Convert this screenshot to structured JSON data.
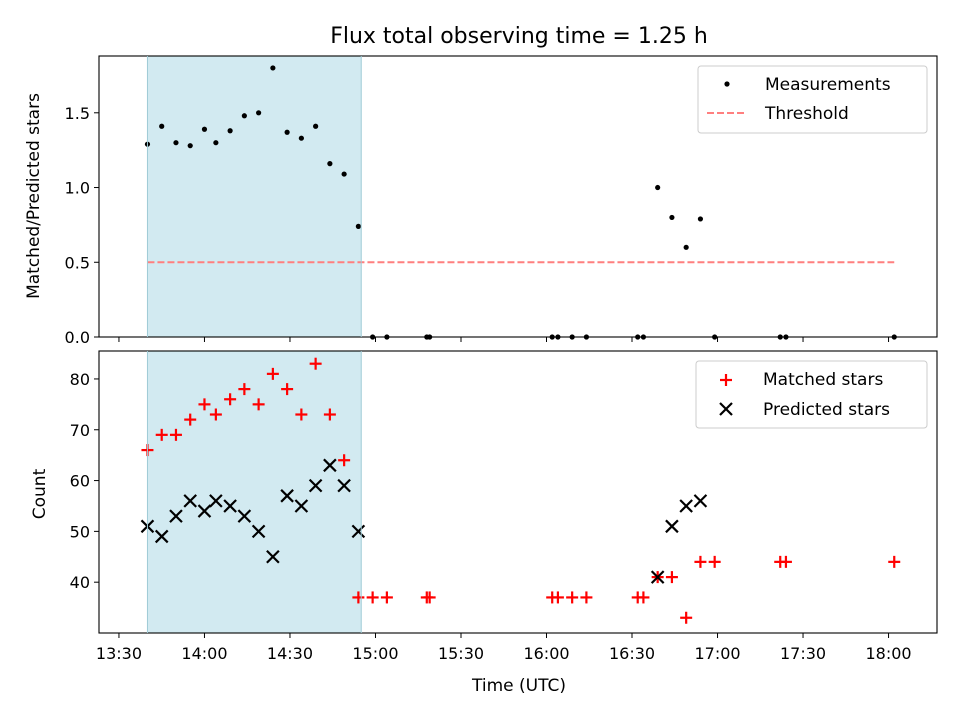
{
  "chart_data": [
    {
      "type": "scatter",
      "title": "Flux total observing time = 1.25 h",
      "xlabel": "",
      "ylabel": "Matched/Predicted stars",
      "ylim": [
        0,
        1.88
      ],
      "yticks": [
        "0.0",
        "0.5",
        "1.0",
        "1.5"
      ],
      "ytick_values": [
        0,
        0.5,
        1.0,
        1.5
      ],
      "xlim": [
        "13:23",
        "18:17"
      ],
      "grid": false,
      "legend": "upper right",
      "shaded_span": {
        "x0": "13:40",
        "x1": "14:55",
        "color": "#add8e6"
      },
      "series": [
        {
          "name": "Measurements",
          "marker": "dot",
          "color": "#000000",
          "x": [
            "13:40",
            "13:45",
            "13:50",
            "13:55",
            "14:00",
            "14:04",
            "14:09",
            "14:14",
            "14:19",
            "14:24",
            "14:29",
            "14:34",
            "14:39",
            "14:44",
            "14:49",
            "14:54",
            "14:59",
            "15:04",
            "15:18",
            "15:19",
            "16:02",
            "16:04",
            "16:09",
            "16:14",
            "16:32",
            "16:34",
            "16:39",
            "16:44",
            "16:49",
            "16:54",
            "16:59",
            "17:22",
            "17:24",
            "18:02"
          ],
          "y": [
            1.29,
            1.41,
            1.3,
            1.28,
            1.39,
            1.3,
            1.38,
            1.48,
            1.5,
            1.8,
            1.37,
            1.33,
            1.41,
            1.16,
            1.09,
            0.74,
            0.0,
            0.0,
            0.0,
            0.0,
            0.0,
            0.0,
            0.0,
            0.0,
            0.0,
            0.0,
            1.0,
            0.8,
            0.6,
            0.79,
            0.0,
            0.0,
            0.0,
            0.0
          ]
        },
        {
          "name": "Threshold",
          "style": "dashed",
          "color": "#ff7f7f",
          "x": [
            "13:40",
            "18:02"
          ],
          "y": [
            0.5,
            0.5
          ]
        }
      ]
    },
    {
      "type": "scatter",
      "title": "",
      "xlabel": "Time (UTC)",
      "ylabel": "Count",
      "ylim": [
        30,
        85.5
      ],
      "yticks": [
        "40",
        "50",
        "60",
        "70",
        "80"
      ],
      "ytick_values": [
        40,
        50,
        60,
        70,
        80
      ],
      "xlim": [
        "13:23",
        "18:17"
      ],
      "xticks": [
        "13:30",
        "14:00",
        "14:30",
        "15:00",
        "15:30",
        "16:00",
        "16:30",
        "17:00",
        "17:30",
        "18:00"
      ],
      "grid": false,
      "legend": "upper right",
      "shaded_span": {
        "x0": "13:40",
        "x1": "14:55",
        "color": "#add8e6"
      },
      "series": [
        {
          "name": "Matched stars",
          "marker": "plus",
          "color": "#ff0000",
          "x": [
            "13:40",
            "13:45",
            "13:50",
            "13:55",
            "14:00",
            "14:04",
            "14:09",
            "14:14",
            "14:19",
            "14:24",
            "14:29",
            "14:34",
            "14:39",
            "14:44",
            "14:49",
            "14:54",
            "14:59",
            "15:04",
            "15:18",
            "15:19",
            "16:02",
            "16:04",
            "16:09",
            "16:14",
            "16:32",
            "16:34",
            "16:39",
            "16:44",
            "16:49",
            "16:54",
            "16:59",
            "17:22",
            "17:24",
            "18:02"
          ],
          "y": [
            66,
            69,
            69,
            72,
            75,
            73,
            76,
            78,
            75,
            81,
            78,
            73,
            83,
            73,
            64,
            37,
            37,
            37,
            37,
            37,
            37,
            37,
            37,
            37,
            37,
            37,
            41,
            41,
            33,
            44,
            44,
            44,
            44,
            44
          ]
        },
        {
          "name": "Predicted stars",
          "marker": "x",
          "color": "#000000",
          "x": [
            "13:40",
            "13:45",
            "13:50",
            "13:55",
            "14:00",
            "14:04",
            "14:09",
            "14:14",
            "14:19",
            "14:24",
            "14:29",
            "14:34",
            "14:39",
            "14:44",
            "14:49",
            "14:54",
            "16:39",
            "16:44",
            "16:49",
            "16:54"
          ],
          "y": [
            51,
            49,
            53,
            56,
            54,
            56,
            55,
            53,
            50,
            45,
            57,
            55,
            59,
            63,
            59,
            50,
            41,
            51,
            55,
            56
          ]
        }
      ]
    }
  ]
}
